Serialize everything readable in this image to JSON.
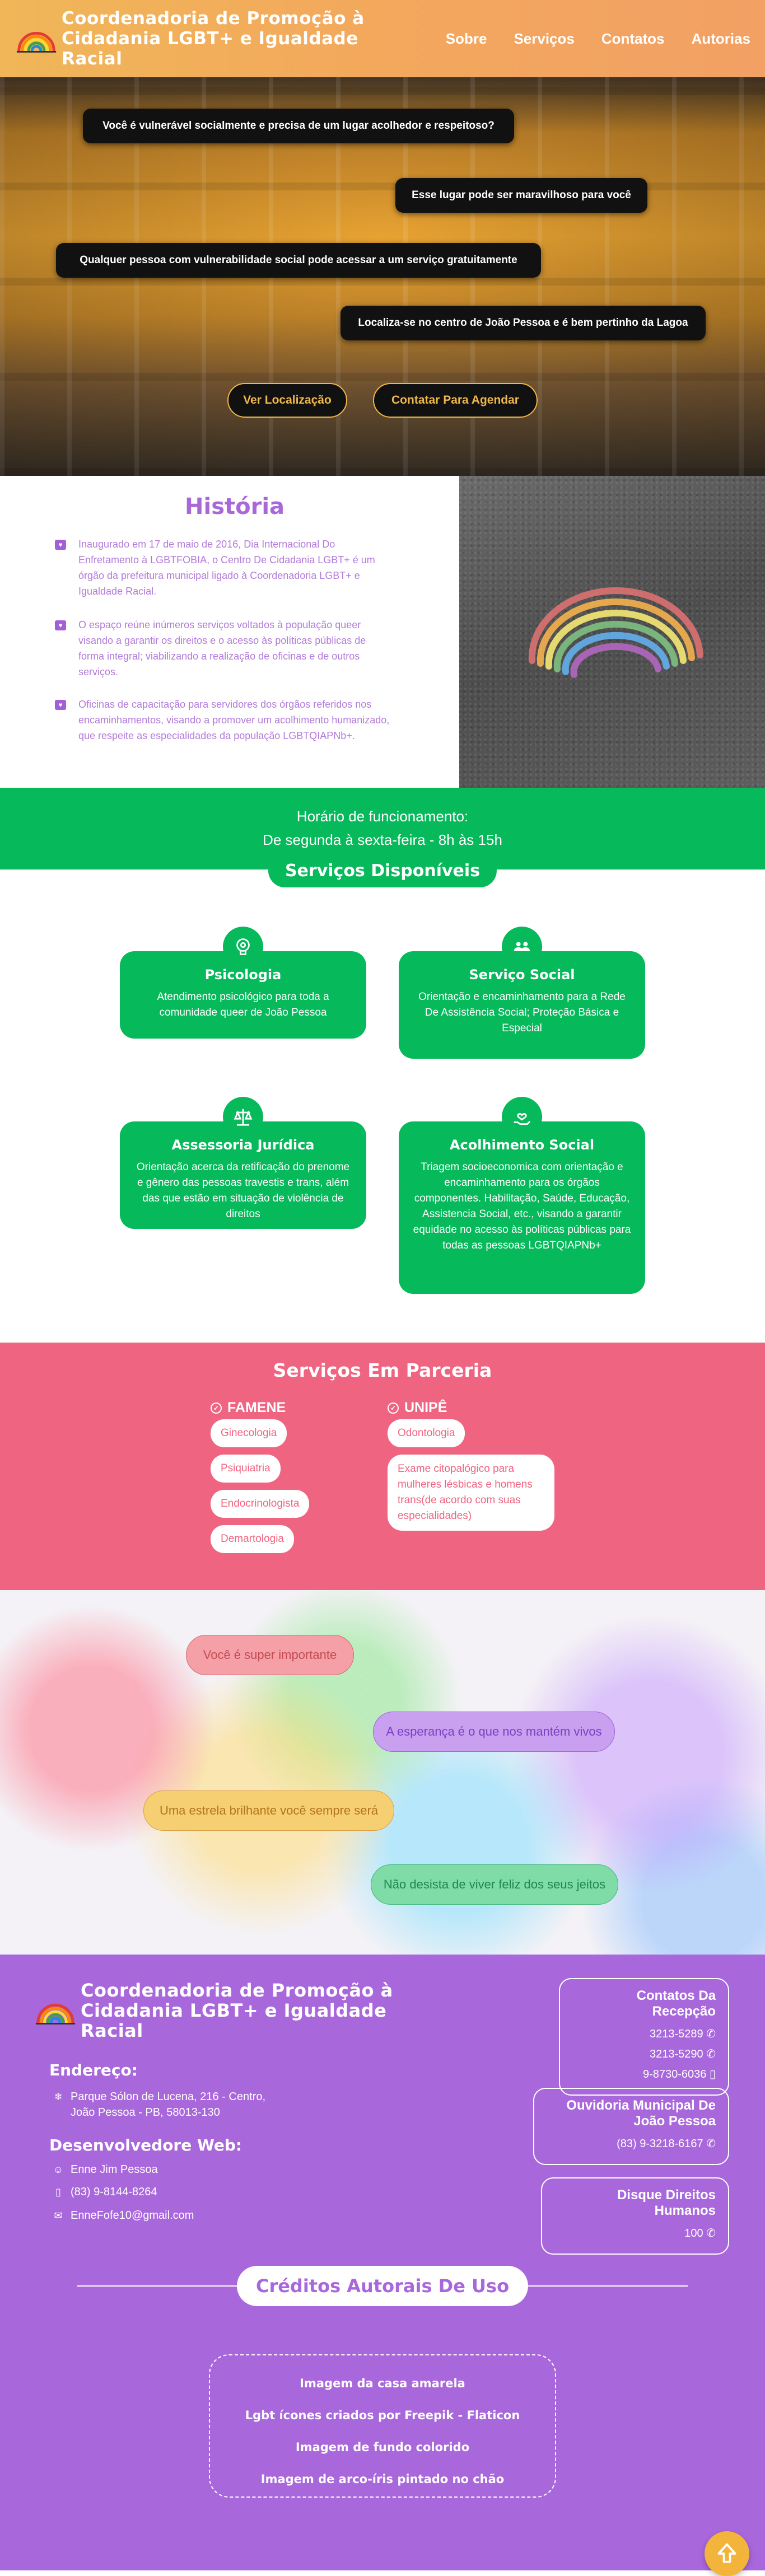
{
  "header": {
    "title": "Coordenadoria de Promoção à Cidadania LGBT+ e Igualdade Racial",
    "nav": [
      "Sobre",
      "Serviços",
      "Contatos",
      "Autorias"
    ]
  },
  "hero": {
    "bubbles": [
      "Você é vulnerável socialmente e precisa de um lugar acolhedor e respeitoso?",
      "Esse lugar pode ser maravilhoso para você",
      "Qualquer pessoa com vulnerabilidade social pode acessar a um serviço gratuitamente",
      "Localiza-se no centro de João Pessoa e é bem pertinho da Lagoa"
    ],
    "buttons": [
      "Ver Localização",
      "Contatar Para Agendar"
    ]
  },
  "historia": {
    "title": "História",
    "items": [
      "Inaugurado em 17 de maio de 2016, Dia Internacional Do Enfretamento à LGBTFOBIA, o Centro De Cidadania LGBT+ é um órgão da prefeitura municipal ligado à Coordenadoria LGBT+ e Igualdade Racial.",
      "O espaço reúne inúmeros serviços voltados à população queer visando a garantir os direitos e o acesso às políticas públicas de forma integral; viabilizando a realização de oficinas e de outros serviços.",
      "Oficinas de capacitação para servidores dos órgãos referidos nos encaminhamentos, visando a promover um acolhimento humanizado, que respeite as especialidades da população LGBTQIAPNb+."
    ]
  },
  "horario": {
    "line1": "Horário de funcionamento:",
    "line2": "De segunda à sexta-feira - 8h às 15h"
  },
  "servicos": {
    "title": "Serviços Disponíveis",
    "cards": [
      {
        "title": "Psicologia",
        "text": "Atendimento psicológico para toda a comunidade queer de João Pessoa",
        "icon": "brain-head-icon"
      },
      {
        "title": "Serviço Social",
        "text": "Orientação e encaminhamento para a Rede De Assistência Social; Proteção Básica e Especial",
        "icon": "people-icon"
      },
      {
        "title": "Assessoria Jurídica",
        "text": "Orientação acerca da retificação do prenome e gênero das pessoas travestis e trans, além das que estão em situação de violência de direitos",
        "icon": "scales-icon"
      },
      {
        "title": "Acolhimento Social",
        "text": "Triagem socioeconomica com orientação e encaminhamento para os órgãos componentes. Habilitação, Saúde, Educação, Assistencia Social, etc., visando a garantir equidade no acesso às políticas públicas para todas as pessoas LGBTQIAPNb+",
        "icon": "hand-heart-icon"
      }
    ]
  },
  "parceria": {
    "title": "Serviços Em Parceria",
    "famene": {
      "title": "FAMENE",
      "items": [
        "Ginecologia",
        "Psiquiatria",
        "Endocrinologista",
        "Demartologia"
      ]
    },
    "unipe": {
      "title": "UNIPÊ",
      "items": [
        "Odontologia",
        "Exame citopalógico para mulheres lésbicas e homens trans(de acordo com suas especialidades)"
      ]
    }
  },
  "frases": [
    {
      "text": "Você é super importante",
      "bg": "#f4a0a6",
      "fg": "#c44a55"
    },
    {
      "text": "A esperança é o que nos mantém vivos",
      "bg": "#c9a0f0",
      "fg": "#7a3fc2"
    },
    {
      "text": "Uma estrela brilhante você sempre será",
      "bg": "#f6cf73",
      "fg": "#b5741a"
    },
    {
      "text": "Não desista de viver feliz dos seus jeitos",
      "bg": "#7fdca6",
      "fg": "#1d8a4c"
    }
  ],
  "footer": {
    "title": "Coordenadoria de Promoção à Cidadania LGBT+ e Igualdade Racial",
    "endereco_label": "Endereço:",
    "endereco": [
      "Parque Sólon de Lucena, 216 - Centro,",
      "João Pessoa - PB, 58013-130"
    ],
    "dev_label": "Desenvolvedore Web:",
    "dev": [
      "Enne Jim Pessoa",
      "(83) 9-8144-8264",
      "EnneFofe10@gmail.com"
    ],
    "recepcao": {
      "title": "Contatos Da Recepção",
      "phones": [
        "3213-5289",
        "3213-5290",
        "9-8730-6036"
      ]
    },
    "ouvidoria": {
      "title": "Ouvidoria Municipal De João Pessoa",
      "phone": "(83) 9-3218-6167"
    },
    "disque": {
      "title": "Disque Direitos Humanos",
      "phone": "100"
    },
    "creditos_title": "Créditos Autorais De Uso",
    "creditos": [
      "Imagem da casa amarela",
      "Lgbt ícones criados por Freepik - Flaticon",
      "Imagem de fundo colorido",
      "Imagem de arco-íris pintado no chão"
    ]
  },
  "colors": {
    "green": "#06b95a",
    "pink": "#ef6480",
    "purple": "#a967dc",
    "orange": "#f3a95c"
  }
}
